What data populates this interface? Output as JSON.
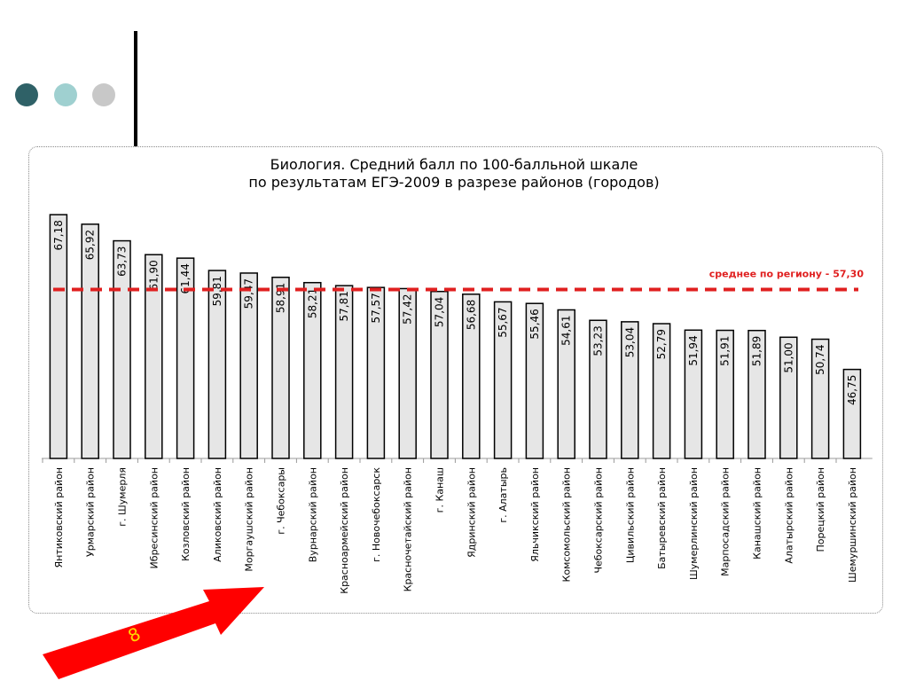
{
  "decor": {
    "dot_colors": [
      "#2f6167",
      "#9fd0d0",
      "#c8c8c8"
    ],
    "line_color": "#000000",
    "arrow_color": "#ff0000",
    "arrow_icon": "red-arrow-icon"
  },
  "page_number": "8",
  "chart_data": {
    "type": "bar",
    "title_line1": "Биология. Средний балл по 100-балльной шкале",
    "title_line2": "по результатам ЕГЭ-2009 в разрезе районов (городов)",
    "categories": [
      "Янтиковский район",
      "Урмарский район",
      "г. Шумерля",
      "Ибресинский район",
      "Козловский район",
      "Аликовский район",
      "Моргаушский район",
      "г. Чебоксары",
      "Вурнарский район",
      "Красноармейский район",
      "г. Новочебоксарск",
      "Красночетайский район",
      "г. Канаш",
      "Ядринский район",
      "г. Алатырь",
      "Яльчикский район",
      "Комсомольский район",
      "Чебоксарский район",
      "Цивильский район",
      "Батыревский район",
      "Шумерлинский район",
      "Марпосадский район",
      "Канашский район",
      "Алатырский район",
      "Порецкий район",
      "Шемуршинский район"
    ],
    "values": [
      67.18,
      65.92,
      63.73,
      61.9,
      61.44,
      59.81,
      59.47,
      58.91,
      58.21,
      57.81,
      57.57,
      57.42,
      57.04,
      56.68,
      55.67,
      55.46,
      54.61,
      53.23,
      53.04,
      52.79,
      51.94,
      51.91,
      51.89,
      51.0,
      50.74,
      46.75
    ],
    "value_labels": [
      "67,18",
      "65,92",
      "63,73",
      "61,90",
      "61,44",
      "59,81",
      "59,47",
      "58,91",
      "58,21",
      "57,81",
      "57,57",
      "57,42",
      "57,04",
      "56,68",
      "55,67",
      "55,46",
      "54,61",
      "53,23",
      "53,04",
      "52,79",
      "51,94",
      "51,91",
      "51,89",
      "51,00",
      "50,74",
      "46,75"
    ],
    "reference_line": {
      "value": 57.3,
      "label": "среднее по региону - 57,30",
      "color": "#e02020"
    },
    "ylim": [
      35,
      70
    ],
    "bar_color": "#e6e6e6",
    "bar_edge_color": "#000000",
    "grid": false,
    "xlabel": "",
    "ylabel": ""
  }
}
